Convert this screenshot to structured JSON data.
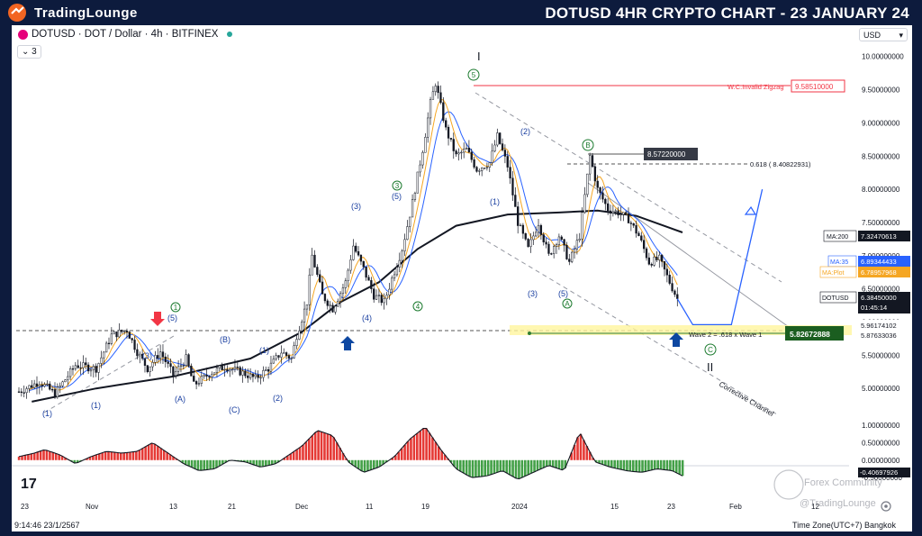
{
  "brand": {
    "name": "TradingLounge"
  },
  "headline": "DOTUSD 4HR CRYPTO CHART - 23 JANUARY 24",
  "symbol_bar": {
    "text": "DOTUSD · DOT / Dollar · 4h · BITFINEX",
    "collapse": "3"
  },
  "currency": {
    "label": "USD",
    "chevron": "▾"
  },
  "chart_data": {
    "type": "line",
    "price_axis": {
      "ticks": [
        "10.00000000",
        "9.50000000",
        "9.00000000",
        "8.50000000",
        "8.00000000",
        "7.50000000",
        "7.00000000",
        "6.50000000",
        "6.00000000",
        "5.50000000",
        "5.00000000"
      ],
      "range": [
        4.5,
        10.2
      ]
    },
    "osc_axis": {
      "ticks": [
        "1.00000000",
        "0.50000000",
        "0.00000000",
        "-0.50000000"
      ],
      "range": [
        -0.7,
        1.1
      ]
    },
    "time_axis": [
      "23",
      "Nov",
      "13",
      "21",
      "Dec",
      "11",
      "19",
      "2024",
      "15",
      "23",
      "Feb",
      "12"
    ],
    "price_path": [
      [
        0,
        4.95
      ],
      [
        8,
        5.1
      ],
      [
        14,
        4.92
      ],
      [
        22,
        5.35
      ],
      [
        30,
        5.3
      ],
      [
        36,
        5.8
      ],
      [
        42,
        5.88
      ],
      [
        46,
        5.55
      ],
      [
        50,
        5.3
      ],
      [
        55,
        5.55
      ],
      [
        60,
        5.2
      ],
      [
        65,
        5.45
      ],
      [
        68,
        5.05
      ],
      [
        74,
        5.22
      ],
      [
        80,
        5.33
      ],
      [
        86,
        5.25
      ],
      [
        92,
        5.15
      ],
      [
        97,
        5.3
      ],
      [
        102,
        5.55
      ],
      [
        106,
        5.45
      ],
      [
        108,
        5.8
      ],
      [
        112,
        6.3
      ],
      [
        114,
        7.0
      ],
      [
        118,
        6.4
      ],
      [
        122,
        6.2
      ],
      [
        127,
        6.6
      ],
      [
        130,
        7.15
      ],
      [
        134,
        6.8
      ],
      [
        138,
        6.4
      ],
      [
        142,
        6.3
      ],
      [
        145,
        6.65
      ],
      [
        149,
        7.1
      ],
      [
        153,
        7.8
      ],
      [
        157,
        8.6
      ],
      [
        160,
        9.3
      ],
      [
        162,
        9.6
      ],
      [
        166,
        8.9
      ],
      [
        170,
        8.5
      ],
      [
        174,
        8.6
      ],
      [
        178,
        8.3
      ],
      [
        183,
        8.4
      ],
      [
        186,
        8.8
      ],
      [
        190,
        8.35
      ],
      [
        194,
        7.5
      ],
      [
        198,
        7.1
      ],
      [
        202,
        7.5
      ],
      [
        206,
        7.0
      ],
      [
        210,
        7.3
      ],
      [
        214,
        6.9
      ],
      [
        218,
        7.3
      ],
      [
        222,
        8.5
      ],
      [
        225,
        8.0
      ],
      [
        229,
        7.7
      ],
      [
        233,
        7.65
      ],
      [
        237,
        7.55
      ],
      [
        241,
        7.3
      ],
      [
        245,
        6.9
      ],
      [
        249,
        6.95
      ],
      [
        253,
        6.6
      ],
      [
        256,
        6.35
      ]
    ],
    "ma200_path": [
      [
        5,
        4.8
      ],
      [
        30,
        5.0
      ],
      [
        60,
        5.18
      ],
      [
        90,
        5.45
      ],
      [
        110,
        5.85
      ],
      [
        125,
        6.3
      ],
      [
        140,
        6.6
      ],
      [
        155,
        7.1
      ],
      [
        170,
        7.45
      ],
      [
        190,
        7.62
      ],
      [
        210,
        7.65
      ],
      [
        225,
        7.68
      ],
      [
        240,
        7.6
      ],
      [
        258,
        7.35
      ]
    ],
    "projection_path": [
      [
        256,
        6.35
      ],
      [
        262,
        5.96
      ],
      [
        277,
        5.96
      ],
      [
        289,
        8.0
      ]
    ],
    "wave_labels": [
      "(1)",
      "(1)",
      "(5)",
      "(3)",
      "(A)",
      "(B)",
      "(C)",
      "(1)",
      "(2)",
      "(3)",
      "(5)",
      "(4)",
      "(1)",
      "(2)",
      "(3)",
      "(5)",
      "B",
      "A",
      "C",
      "I",
      "II",
      "4",
      "3"
    ],
    "annotations": {
      "invalid": "W.C.Invalid Zigzag",
      "invalid_price": "9.58510000",
      "top_box": "8.57220000",
      "fib": "0.618 ( 8.40822931)",
      "wave2": "Wave 2 = .618 x Wave 1",
      "wave2_price": "5.82672888",
      "channel": "Corrective Channel"
    },
    "legend": [
      {
        "name": "MA:200",
        "value": "7.32470613",
        "color": "#131722"
      },
      {
        "name": "MA:35",
        "value": "6.89344433",
        "color": "#2962ff"
      },
      {
        "name": "MA:Plot",
        "value": "6.78957968",
        "color": "#f5a623"
      },
      {
        "name": "DOTUSD",
        "value": "6.38450000",
        "color": "#131722"
      }
    ],
    "countdown": "01:45:14",
    "support_levels": [
      "5.96174102",
      "5.87633036"
    ],
    "oscillator": {
      "value": "-0.40697926",
      "x": [
        0,
        6,
        10,
        16,
        22,
        28,
        34,
        40,
        46,
        52,
        58,
        64,
        70,
        76,
        82,
        88,
        94,
        100,
        106,
        110,
        116,
        122,
        128,
        134,
        140,
        146,
        152,
        158,
        164,
        170,
        176,
        182,
        188,
        194,
        200,
        206,
        212,
        218,
        224,
        230,
        236,
        242,
        248,
        254,
        258
      ],
      "y": [
        0.1,
        0.2,
        0.3,
        0.15,
        -0.1,
        0.1,
        0.25,
        0.2,
        0.25,
        0.5,
        0.2,
        -0.1,
        -0.3,
        -0.25,
        0.0,
        -0.05,
        -0.2,
        -0.1,
        0.2,
        0.4,
        0.85,
        0.7,
        -0.05,
        -0.35,
        -0.2,
        0.1,
        0.6,
        0.95,
        0.3,
        -0.25,
        -0.5,
        -0.45,
        -0.3,
        -0.55,
        -0.35,
        -0.15,
        -0.3,
        0.8,
        -0.05,
        -0.2,
        -0.3,
        -0.35,
        -0.25,
        -0.3,
        -0.45
      ]
    }
  },
  "footer": {
    "timestamp": "9:14:46 23/1/2567",
    "timezone": "Time Zone(UTC+7) Bangkok",
    "watermark": "Forex Community",
    "watermark2": "@TradingLounge"
  }
}
